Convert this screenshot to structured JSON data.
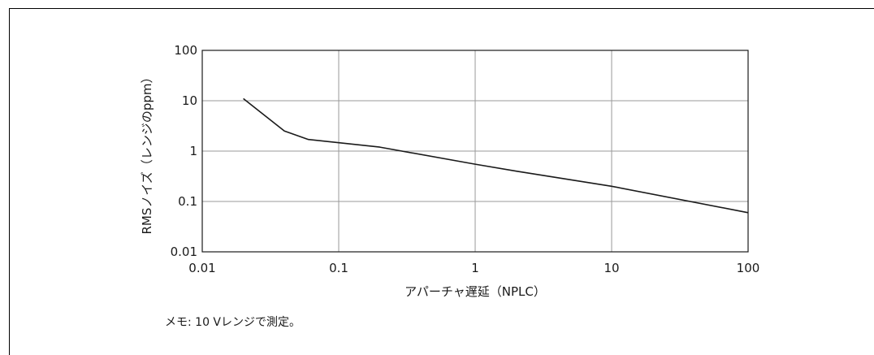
{
  "chart_data": {
    "type": "line",
    "title": "",
    "xlabel": "アパーチャ遅延（NPLC）",
    "ylabel": "RMSノイズ（レンジのppm）",
    "xscale": "log",
    "yscale": "log",
    "xlim": [
      0.01,
      100
    ],
    "ylim": [
      0.01,
      100
    ],
    "x_ticks": [
      0.01,
      0.1,
      1,
      10,
      100
    ],
    "x_tick_labels": [
      "0.01",
      "0.1",
      "1",
      "10",
      "100"
    ],
    "y_ticks": [
      0.01,
      0.1,
      1,
      10,
      100
    ],
    "y_tick_labels": [
      "0.01",
      "0.1",
      "1",
      "10",
      "100"
    ],
    "grid": true,
    "legend": "none",
    "series": [
      {
        "color": "#1a1a1a",
        "x": [
          0.02,
          0.04,
          0.06,
          0.2,
          1,
          2,
          10,
          100
        ],
        "y": [
          11,
          2.5,
          1.7,
          1.2,
          0.55,
          0.4,
          0.2,
          0.06
        ]
      }
    ]
  },
  "note": "メモ: 10 Vレンジで測定。",
  "colors": {
    "grid": "#9a9a9a",
    "axis": "#1a1a1a",
    "line": "#1a1a1a"
  }
}
